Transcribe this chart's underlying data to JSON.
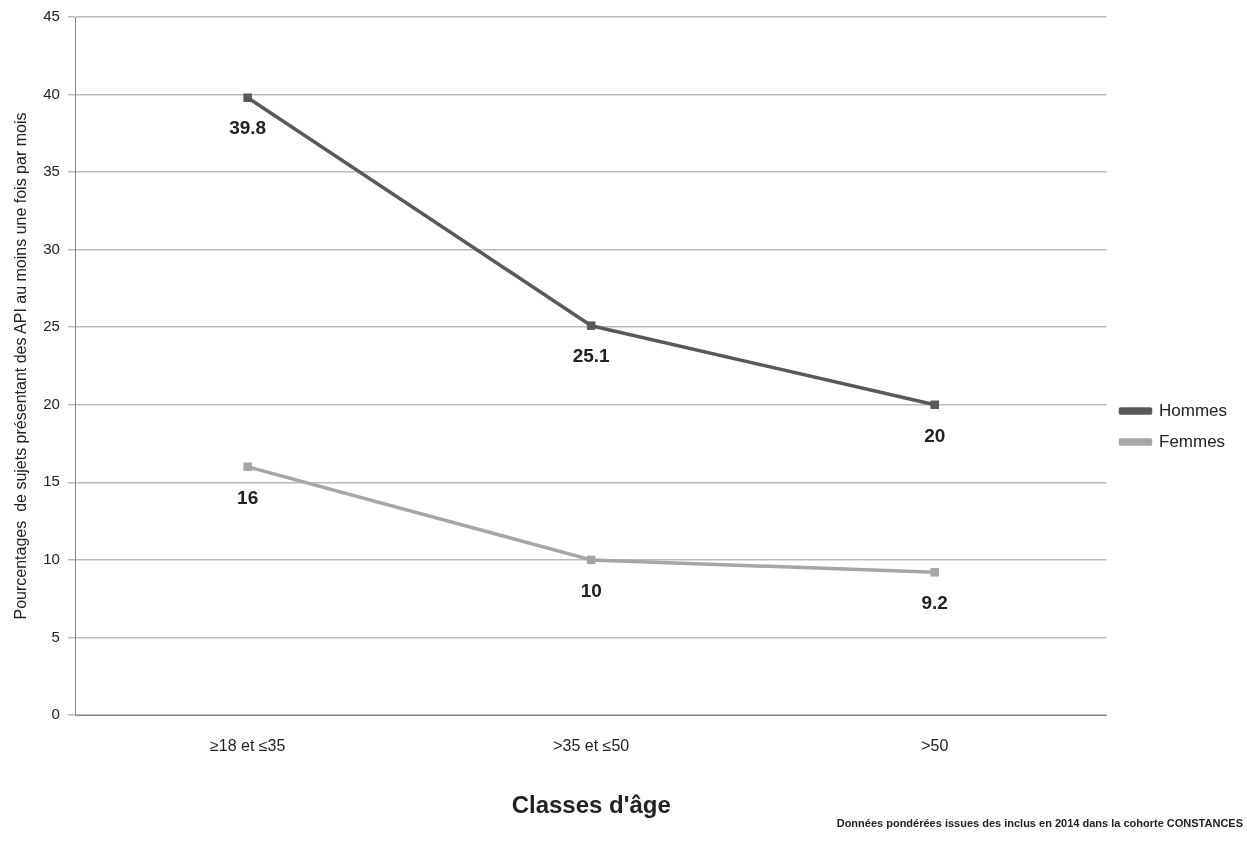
{
  "chart_data": {
    "type": "line",
    "xlabel": "Classes d'âge",
    "ylabel": "Pourcentages  de sujets présentant des API au moins une fois par mois",
    "categories": [
      "≥18 et ≤35",
      ">35 et ≤50",
      ">50"
    ],
    "series": [
      {
        "name": "Hommes",
        "color": "#595959",
        "values": [
          39.8,
          25.1,
          20
        ]
      },
      {
        "name": "Femmes",
        "color": "#a6a6a6",
        "values": [
          16,
          10,
          9.2
        ]
      }
    ],
    "ylim": [
      0,
      45
    ],
    "yticks": [
      0,
      5,
      10,
      15,
      20,
      25,
      30,
      35,
      40,
      45
    ],
    "grid": "y",
    "legend": "right",
    "marker": "square",
    "line_style": "solid",
    "data_labels": true,
    "annotations": [
      "Données pondérées issues des inclus en 2014 dans la cohorte CONSTANCES"
    ]
  }
}
